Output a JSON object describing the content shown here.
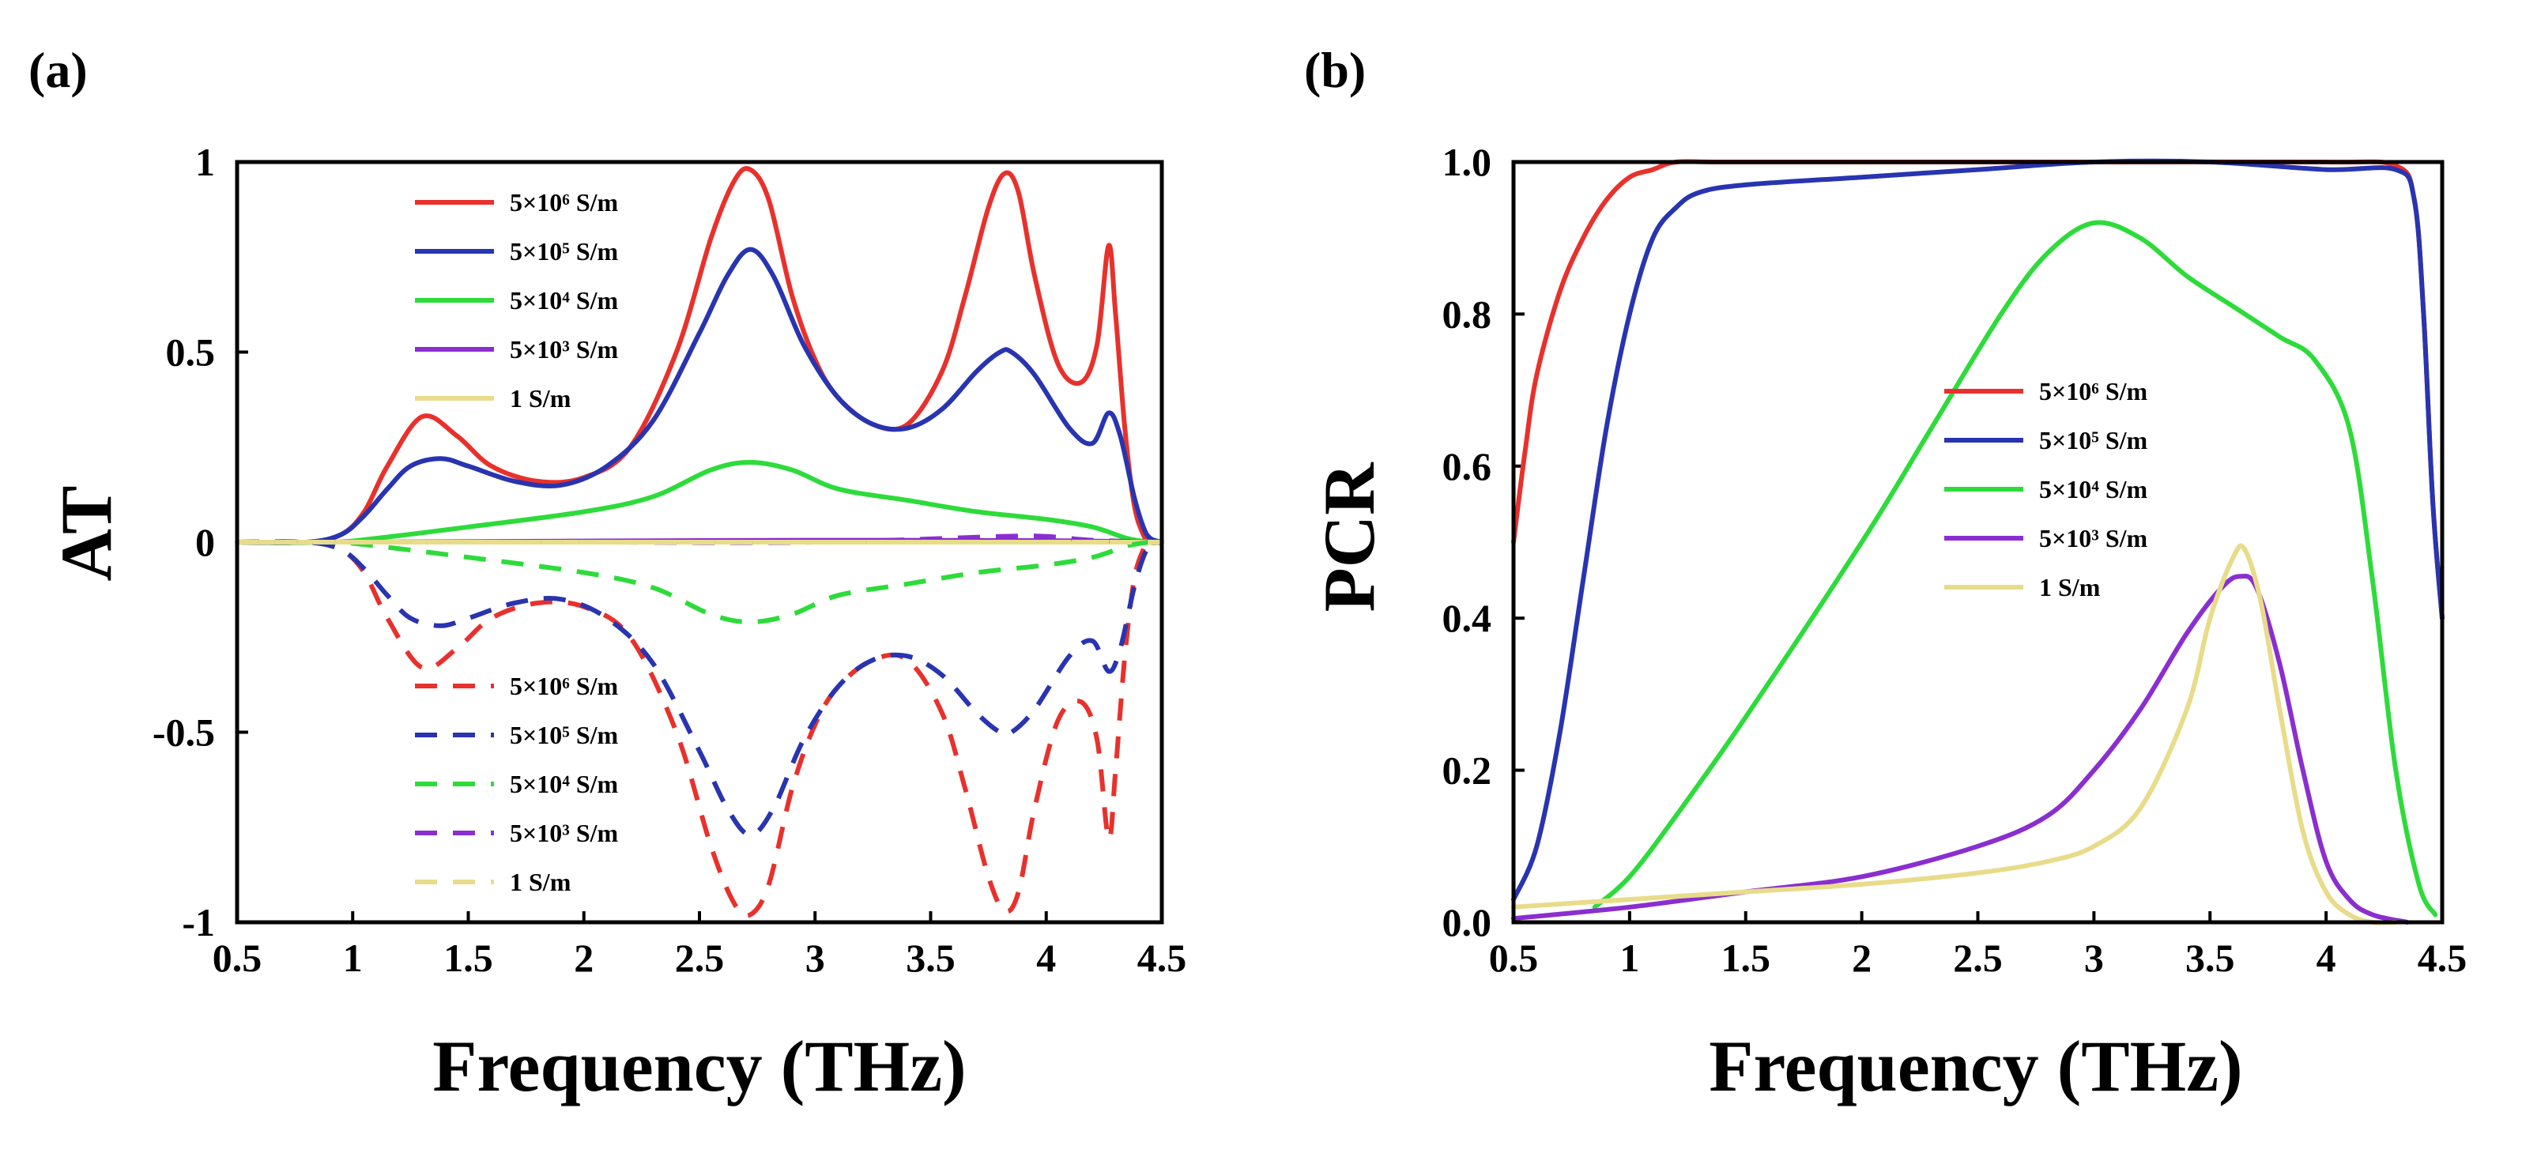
{
  "chart_data": [
    {
      "panel": "(a)",
      "type": "line",
      "xlabel": "Frequency (THz)",
      "ylabel": "AT",
      "xlim": [
        0.5,
        4.5
      ],
      "ylim": [
        -1,
        1
      ],
      "xticks": [
        "0.5",
        "1",
        "1.5",
        "2",
        "2.5",
        "3",
        "3.5",
        "4",
        "4.5"
      ],
      "xtick_values": [
        0.5,
        1,
        1.5,
        2,
        2.5,
        3,
        3.5,
        4,
        4.5
      ],
      "yticks": [
        "1",
        "0.5",
        "0",
        "-0.5",
        "-1"
      ],
      "ytick_values": [
        1,
        0.5,
        0,
        -0.5,
        -1
      ],
      "legend_solid": [
        "5×10⁶ S/m",
        "5×10⁵ S/m",
        "5×10⁴ S/m",
        "5×10³ S/m",
        "1 S/m"
      ],
      "legend_dashed": [
        "5×10⁶ S/m",
        "5×10⁵ S/m",
        "5×10⁴ S/m",
        "5×10³ S/m",
        "1 S/m"
      ],
      "series": [
        {
          "name": "5×10⁶ S/m",
          "color": "#e8312c",
          "dash": false,
          "x": [
            0.5,
            0.8,
            0.95,
            1.05,
            1.15,
            1.3,
            1.45,
            1.6,
            1.8,
            2.0,
            2.2,
            2.4,
            2.55,
            2.65,
            2.72,
            2.8,
            2.9,
            3.0,
            3.1,
            3.25,
            3.4,
            3.55,
            3.65,
            3.75,
            3.82,
            3.88,
            3.95,
            4.05,
            4.15,
            4.22,
            4.27,
            4.3,
            4.34,
            4.38,
            4.42,
            4.45,
            4.5
          ],
          "y": [
            0,
            0,
            0.02,
            0.08,
            0.2,
            0.33,
            0.28,
            0.2,
            0.16,
            0.17,
            0.25,
            0.5,
            0.8,
            0.95,
            0.98,
            0.9,
            0.65,
            0.48,
            0.38,
            0.31,
            0.31,
            0.45,
            0.65,
            0.88,
            0.97,
            0.92,
            0.7,
            0.47,
            0.42,
            0.52,
            0.78,
            0.6,
            0.3,
            0.1,
            0.02,
            0,
            0
          ]
        },
        {
          "name": "5×10⁵ S/m",
          "color": "#2834b0",
          "dash": false,
          "x": [
            0.5,
            0.8,
            0.95,
            1.05,
            1.15,
            1.25,
            1.38,
            1.5,
            1.7,
            1.9,
            2.1,
            2.3,
            2.5,
            2.62,
            2.72,
            2.82,
            2.95,
            3.1,
            3.25,
            3.4,
            3.55,
            3.7,
            3.8,
            3.85,
            3.95,
            4.1,
            4.2,
            4.27,
            4.32,
            4.38,
            4.42,
            4.45,
            4.5
          ],
          "y": [
            0,
            0,
            0.02,
            0.07,
            0.14,
            0.2,
            0.22,
            0.2,
            0.16,
            0.15,
            0.2,
            0.32,
            0.55,
            0.7,
            0.77,
            0.7,
            0.52,
            0.38,
            0.31,
            0.3,
            0.35,
            0.45,
            0.5,
            0.5,
            0.44,
            0.3,
            0.26,
            0.34,
            0.28,
            0.12,
            0.04,
            0.01,
            0
          ]
        },
        {
          "name": "5×10⁴ S/m",
          "color": "#2ddb3a",
          "dash": false,
          "x": [
            0.5,
            0.9,
            1.1,
            1.5,
            2.0,
            2.3,
            2.55,
            2.72,
            2.9,
            3.1,
            3.4,
            3.7,
            4.0,
            4.2,
            4.35,
            4.45,
            4.5
          ],
          "y": [
            0,
            0,
            0.01,
            0.04,
            0.08,
            0.12,
            0.19,
            0.21,
            0.19,
            0.14,
            0.11,
            0.08,
            0.06,
            0.04,
            0.01,
            0,
            0
          ]
        },
        {
          "name": "5×10³ S/m",
          "color": "#8a2ed0",
          "dash": false,
          "x": [
            0.5,
            1.0,
            2.0,
            3.0,
            4.0,
            4.5
          ],
          "y": [
            0,
            0.0,
            0.003,
            0.005,
            0.004,
            0
          ]
        },
        {
          "name": "1 S/m",
          "color": "#e8dc8a",
          "dash": false,
          "x": [
            0.5,
            1.0,
            2.0,
            3.0,
            4.0,
            4.5
          ],
          "y": [
            0,
            0,
            0,
            0,
            0,
            0
          ]
        },
        {
          "name": "5×10⁶ S/m",
          "color": "#e8312c",
          "dash": true,
          "x": [
            0.5,
            0.8,
            0.95,
            1.05,
            1.15,
            1.3,
            1.45,
            1.6,
            1.8,
            2.0,
            2.2,
            2.4,
            2.55,
            2.65,
            2.72,
            2.8,
            2.9,
            3.0,
            3.1,
            3.25,
            3.4,
            3.55,
            3.65,
            3.75,
            3.82,
            3.88,
            3.95,
            4.05,
            4.15,
            4.22,
            4.27,
            4.3,
            4.34,
            4.38,
            4.42,
            4.45,
            4.5
          ],
          "y": [
            0,
            0,
            -0.02,
            -0.08,
            -0.2,
            -0.33,
            -0.28,
            -0.2,
            -0.16,
            -0.17,
            -0.25,
            -0.5,
            -0.8,
            -0.95,
            -0.98,
            -0.9,
            -0.65,
            -0.48,
            -0.38,
            -0.31,
            -0.31,
            -0.45,
            -0.65,
            -0.88,
            -0.97,
            -0.92,
            -0.7,
            -0.47,
            -0.42,
            -0.52,
            -0.78,
            -0.6,
            -0.3,
            -0.1,
            -0.02,
            0,
            0
          ]
        },
        {
          "name": "5×10⁵ S/m",
          "color": "#2834b0",
          "dash": true,
          "x": [
            0.5,
            0.8,
            0.95,
            1.05,
            1.15,
            1.25,
            1.38,
            1.5,
            1.7,
            1.9,
            2.1,
            2.3,
            2.5,
            2.62,
            2.72,
            2.82,
            2.95,
            3.1,
            3.25,
            3.4,
            3.55,
            3.7,
            3.8,
            3.85,
            3.95,
            4.1,
            4.2,
            4.27,
            4.32,
            4.38,
            4.42,
            4.45,
            4.5
          ],
          "y": [
            0,
            0,
            -0.02,
            -0.07,
            -0.14,
            -0.2,
            -0.22,
            -0.2,
            -0.16,
            -0.15,
            -0.2,
            -0.32,
            -0.55,
            -0.7,
            -0.77,
            -0.7,
            -0.52,
            -0.38,
            -0.31,
            -0.3,
            -0.35,
            -0.45,
            -0.5,
            -0.5,
            -0.44,
            -0.3,
            -0.26,
            -0.34,
            -0.28,
            -0.12,
            -0.04,
            -0.01,
            0
          ]
        },
        {
          "name": "5×10⁴ S/m",
          "color": "#2ddb3a",
          "dash": true,
          "x": [
            0.5,
            0.9,
            1.1,
            1.5,
            2.0,
            2.3,
            2.55,
            2.72,
            2.9,
            3.1,
            3.4,
            3.7,
            4.0,
            4.2,
            4.35,
            4.45,
            4.5
          ],
          "y": [
            0,
            0,
            -0.01,
            -0.04,
            -0.08,
            -0.12,
            -0.19,
            -0.21,
            -0.19,
            -0.14,
            -0.11,
            -0.08,
            -0.06,
            -0.04,
            -0.01,
            0,
            0
          ]
        },
        {
          "name": "5×10³ S/m",
          "color": "#8a2ed0",
          "dash": true,
          "x": [
            0.5,
            1.0,
            2.0,
            3.0,
            3.8,
            4.0,
            4.2,
            4.5
          ],
          "y": [
            0,
            0,
            0,
            0,
            0.015,
            0.015,
            0.005,
            0
          ]
        },
        {
          "name": "1 S/m",
          "color": "#e8dc8a",
          "dash": true,
          "x": [
            0.5,
            1.0,
            2.0,
            3.0,
            4.0,
            4.5
          ],
          "y": [
            0,
            0,
            0,
            0,
            0,
            0
          ]
        }
      ]
    },
    {
      "panel": "(b)",
      "type": "line",
      "xlabel": "Frequency (THz)",
      "ylabel": "PCR",
      "xlim": [
        0.5,
        4.5
      ],
      "ylim": [
        0,
        1
      ],
      "xticks": [
        "0.5",
        "1",
        "1.5",
        "2",
        "2.5",
        "3",
        "3.5",
        "4",
        "4.5"
      ],
      "xtick_values": [
        0.5,
        1,
        1.5,
        2,
        2.5,
        3,
        3.5,
        4,
        4.5
      ],
      "yticks": [
        "1.0",
        "0.8",
        "0.6",
        "0.4",
        "0.2",
        "0.0"
      ],
      "ytick_values": [
        1.0,
        0.8,
        0.6,
        0.4,
        0.2,
        0.0
      ],
      "legend": [
        "5×10⁶ S/m",
        "5×10⁵ S/m",
        "5×10⁴ S/m",
        "5×10³ S/m",
        "1 S/m"
      ],
      "series": [
        {
          "name": "5×10⁶ S/m",
          "color": "#e8312c",
          "x": [
            0.5,
            0.55,
            0.6,
            0.7,
            0.8,
            0.9,
            1.0,
            1.1,
            1.2,
            1.4,
            2.0,
            3.0,
            4.0,
            4.3,
            4.38,
            4.42,
            4.46,
            4.5
          ],
          "y": [
            0.5,
            0.62,
            0.72,
            0.83,
            0.9,
            0.95,
            0.98,
            0.99,
            1.0,
            1.0,
            1.0,
            1.0,
            1.0,
            0.995,
            0.95,
            0.8,
            0.55,
            0.4
          ]
        },
        {
          "name": "5×10⁵ S/m",
          "color": "#2834b0",
          "x": [
            0.5,
            0.6,
            0.7,
            0.8,
            0.9,
            1.0,
            1.1,
            1.2,
            1.3,
            1.5,
            2.0,
            2.5,
            3.0,
            3.5,
            4.0,
            4.3,
            4.38,
            4.42,
            4.46,
            4.5
          ],
          "y": [
            0.03,
            0.1,
            0.25,
            0.45,
            0.65,
            0.8,
            0.9,
            0.94,
            0.96,
            0.97,
            0.98,
            0.99,
            1.0,
            1.0,
            0.99,
            0.99,
            0.95,
            0.8,
            0.55,
            0.4
          ]
        },
        {
          "name": "5×10⁴ S/m",
          "color": "#2ddb3a",
          "x": [
            0.85,
            1.0,
            1.2,
            1.5,
            2.0,
            2.3,
            2.6,
            2.8,
            3.0,
            3.2,
            3.4,
            3.6,
            3.8,
            3.95,
            4.1,
            4.2,
            4.3,
            4.4,
            4.47
          ],
          "y": [
            0.02,
            0.06,
            0.14,
            0.27,
            0.5,
            0.65,
            0.8,
            0.88,
            0.92,
            0.9,
            0.85,
            0.81,
            0.77,
            0.74,
            0.65,
            0.45,
            0.2,
            0.05,
            0.01
          ]
        },
        {
          "name": "5×10³ S/m",
          "color": "#8a2ed0",
          "x": [
            0.5,
            1.0,
            1.5,
            2.0,
            2.5,
            2.8,
            3.0,
            3.2,
            3.4,
            3.55,
            3.63,
            3.7,
            3.8,
            3.9,
            4.0,
            4.1,
            4.2,
            4.35
          ],
          "y": [
            0.005,
            0.02,
            0.04,
            0.06,
            0.1,
            0.14,
            0.2,
            0.28,
            0.38,
            0.44,
            0.455,
            0.44,
            0.34,
            0.2,
            0.08,
            0.03,
            0.01,
            0
          ]
        },
        {
          "name": "1 S/m",
          "color": "#e8dc8a",
          "x": [
            0.5,
            1.0,
            1.5,
            2.0,
            2.5,
            2.8,
            3.0,
            3.2,
            3.4,
            3.5,
            3.6,
            3.65,
            3.72,
            3.8,
            3.9,
            4.0,
            4.1,
            4.2,
            4.3
          ],
          "y": [
            0.02,
            0.03,
            0.04,
            0.05,
            0.065,
            0.08,
            0.1,
            0.15,
            0.28,
            0.4,
            0.48,
            0.49,
            0.42,
            0.28,
            0.12,
            0.04,
            0.01,
            0,
            0
          ]
        }
      ]
    }
  ]
}
